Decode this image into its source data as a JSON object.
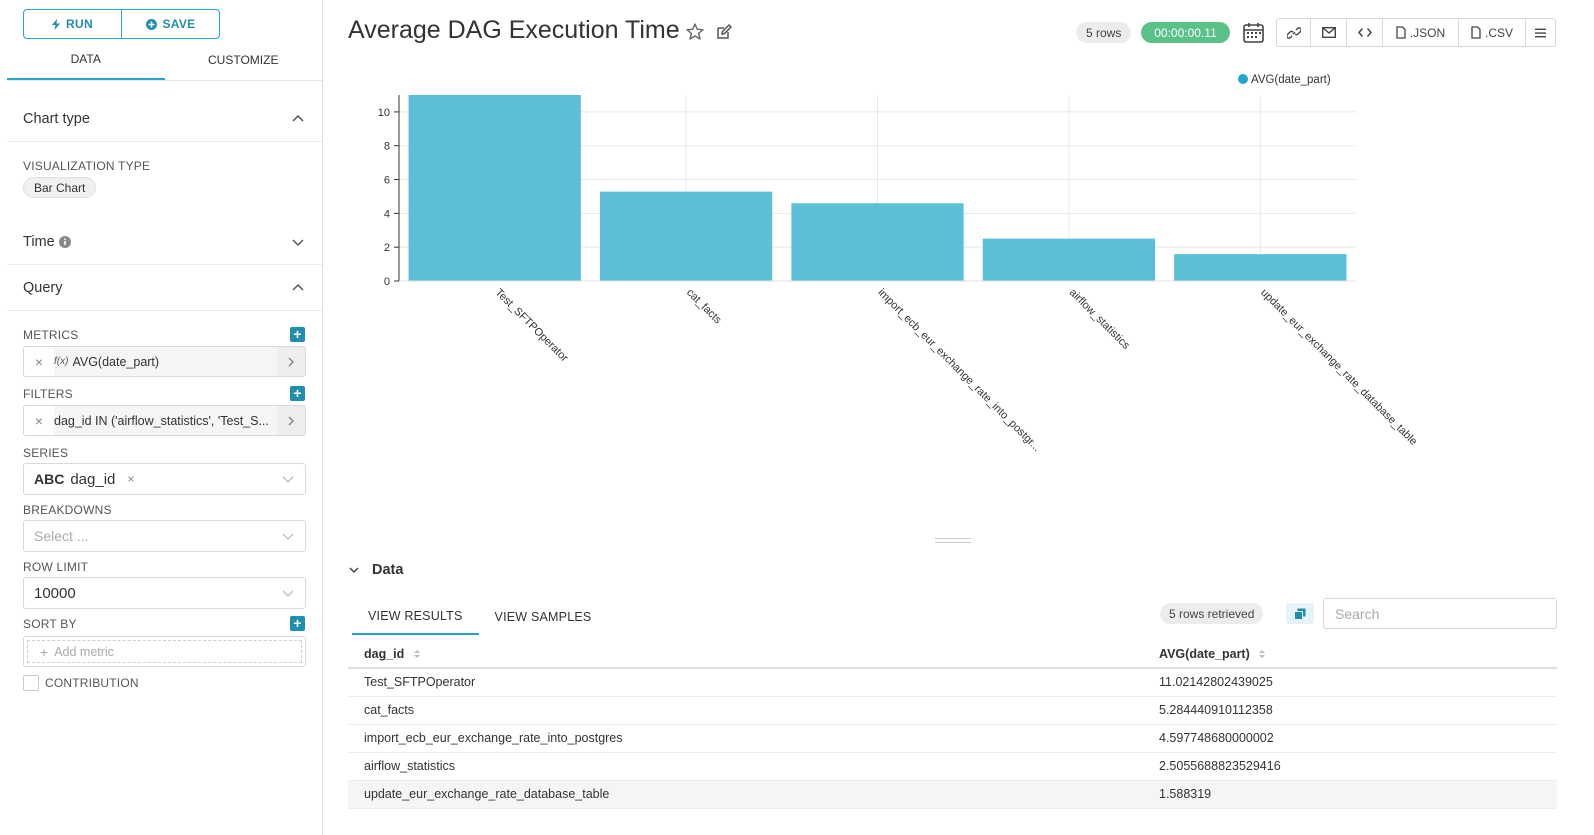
{
  "left": {
    "run_label": "RUN",
    "save_label": "SAVE",
    "tabs": [
      "DATA",
      "CUSTOMIZE"
    ],
    "chart_type_header": "Chart type",
    "viz_type_label": "VISUALIZATION TYPE",
    "viz_type_value": "Bar Chart",
    "time_header": "Time",
    "query_header": "Query",
    "metrics_label": "METRICS",
    "metric_value": "AVG(date_part)",
    "fx_label": "f(x)",
    "filters_label": "FILTERS",
    "filter_value": "dag_id IN ('airflow_statistics', 'Test_S...",
    "series_label": "SERIES",
    "series_type": "ABC",
    "series_value": "dag_id",
    "breakdowns_label": "BREAKDOWNS",
    "breakdowns_placeholder": "Select ...",
    "row_limit_label": "ROW LIMIT",
    "row_limit_value": "10000",
    "sort_by_label": "SORT BY",
    "add_metric_label": "Add metric",
    "contribution_label": "CONTRIBUTION"
  },
  "header": {
    "title": "Average DAG Execution Time",
    "rows_badge": "5 rows",
    "timer": "00:00:00.11",
    "json_label": ".JSON",
    "csv_label": ".CSV"
  },
  "chart_data": {
    "type": "bar",
    "categories": [
      "Test_SFTPOperator",
      "cat_facts",
      "import_ecb_eur_exchange_rate_into_postgr...",
      "airflow_statistics",
      "update_eur_exchange_rate_database_table"
    ],
    "series": [
      {
        "name": "AVG(date_part)",
        "values": [
          11.02142802439025,
          5.284440910112358,
          4.597748680000002,
          2.5055688823529416,
          1.588319
        ]
      }
    ],
    "ylim": [
      0,
      11
    ],
    "yticks": [
      0,
      2,
      4,
      6,
      8,
      10
    ],
    "grid": true,
    "legend": "top-right",
    "color": "#5bbfd6"
  },
  "data_pane": {
    "header": "Data",
    "tabs": [
      "VIEW RESULTS",
      "VIEW SAMPLES"
    ],
    "retrieved": "5 rows retrieved",
    "search_placeholder": "Search",
    "columns": [
      "dag_id",
      "AVG(date_part)"
    ],
    "rows": [
      [
        "Test_SFTPOperator",
        "11.02142802439025"
      ],
      [
        "cat_facts",
        "5.284440910112358"
      ],
      [
        "import_ecb_eur_exchange_rate_into_postgres",
        "4.597748680000002"
      ],
      [
        "airflow_statistics",
        "2.5055688823529416"
      ],
      [
        "update_eur_exchange_rate_database_table",
        "1.588319"
      ]
    ]
  }
}
